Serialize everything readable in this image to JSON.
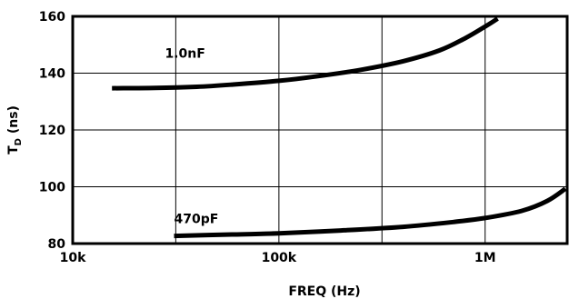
{
  "chart_data": {
    "type": "line",
    "xscale": "log",
    "xlim": [
      10000,
      2500000
    ],
    "ylim": [
      80,
      160
    ],
    "xticks": [
      {
        "value": 10000,
        "label": "10k"
      },
      {
        "value": 100000,
        "label": "100k"
      },
      {
        "value": 1000000,
        "label": "1M"
      }
    ],
    "xgrid": [
      10000,
      31600,
      100000,
      316000,
      1000000
    ],
    "yticks": [
      80,
      100,
      120,
      140,
      160
    ],
    "grid": true,
    "xlabel": "FREQ (Hz)",
    "ylabel": {
      "main": "T",
      "sub": "D",
      "unit": " (ns)"
    },
    "series": [
      {
        "name": "1.0nF",
        "label_at": [
          28000,
          145.5
        ],
        "points": [
          [
            15500,
            134.7
          ],
          [
            25000,
            134.8
          ],
          [
            40000,
            135.2
          ],
          [
            60000,
            136.0
          ],
          [
            100000,
            137.3
          ],
          [
            150000,
            138.8
          ],
          [
            250000,
            141.2
          ],
          [
            400000,
            144.2
          ],
          [
            600000,
            148.0
          ],
          [
            800000,
            152.3
          ],
          [
            1000000,
            156.4
          ],
          [
            1150000,
            159.2
          ]
        ]
      },
      {
        "name": "470pF",
        "label_at": [
          31000,
          87.2
        ],
        "points": [
          [
            31000,
            82.7
          ],
          [
            60000,
            83.2
          ],
          [
            100000,
            83.6
          ],
          [
            200000,
            84.6
          ],
          [
            400000,
            85.9
          ],
          [
            700000,
            87.6
          ],
          [
            1000000,
            89.0
          ],
          [
            1500000,
            91.5
          ],
          [
            2000000,
            95.0
          ],
          [
            2450000,
            99.3
          ]
        ]
      }
    ]
  }
}
